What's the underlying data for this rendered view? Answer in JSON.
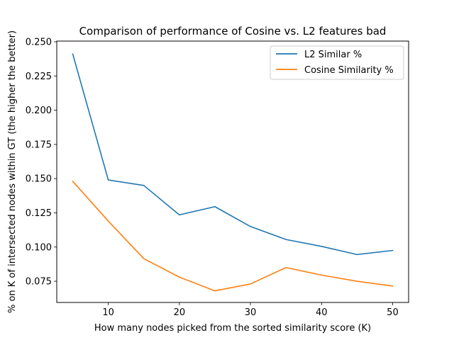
{
  "chart_data": {
    "type": "line",
    "title": "Comparison of performance of Cosine vs. L2 features bad",
    "xlabel": "How many nodes picked from the sorted similarity score (K)",
    "ylabel": "% on K of intersected nodes within GT (the higher the better)",
    "x": [
      5,
      10,
      15,
      20,
      25,
      30,
      35,
      40,
      45,
      50
    ],
    "xlim": [
      2.75,
      52.25
    ],
    "ylim": [
      0.0595,
      0.2505
    ],
    "xticks": [
      10,
      20,
      30,
      40,
      50
    ],
    "yticks": [
      0.075,
      0.1,
      0.125,
      0.15,
      0.175,
      0.2,
      0.225,
      0.25
    ],
    "ytick_labels": [
      "0.075",
      "0.100",
      "0.125",
      "0.150",
      "0.175",
      "0.200",
      "0.225",
      "0.250"
    ],
    "grid": false,
    "legend_position": "top-right",
    "series": [
      {
        "name": "L2 Similar %",
        "color": "#1f77b4",
        "values": [
          0.241,
          0.149,
          0.145,
          0.1235,
          0.1295,
          0.115,
          0.1055,
          0.1005,
          0.0945,
          0.0975
        ]
      },
      {
        "name": "Cosine Similarity %",
        "color": "#ff7f0e",
        "values": [
          0.148,
          0.119,
          0.0915,
          0.078,
          0.068,
          0.073,
          0.085,
          0.0795,
          0.075,
          0.0715
        ]
      }
    ]
  }
}
